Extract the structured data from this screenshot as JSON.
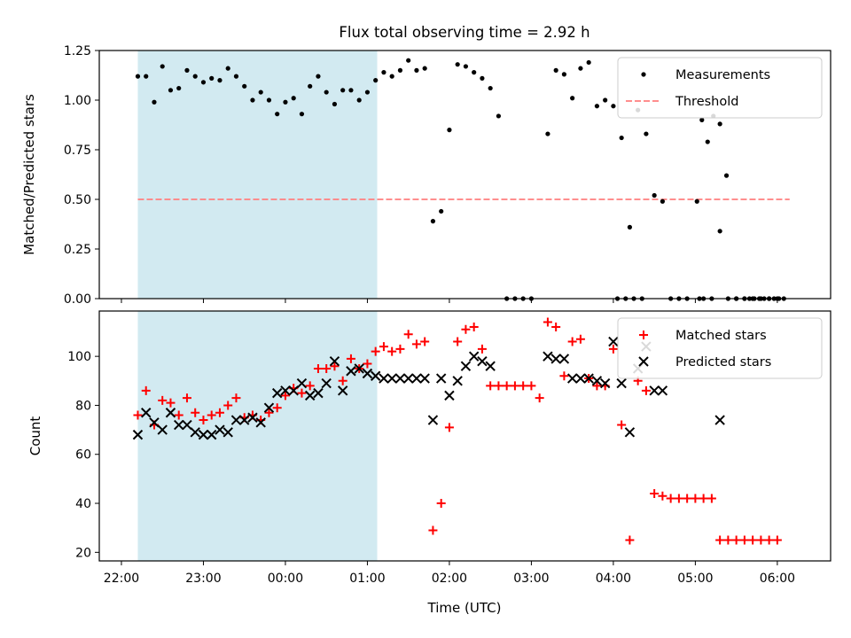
{
  "title": "Flux total observing time = 2.92 h",
  "colors": {
    "measurement": "#000000",
    "threshold": "#ff7f7f",
    "shade": "#add8e6",
    "matched": "#ff0000",
    "predicted": "#000000"
  },
  "x_axis": {
    "label": "Time (UTC)",
    "range_hours": [
      21.73,
      30.65
    ],
    "ticks": [
      {
        "h": 22,
        "label": "22:00"
      },
      {
        "h": 23,
        "label": "23:00"
      },
      {
        "h": 24,
        "label": "00:00"
      },
      {
        "h": 25,
        "label": "01:00"
      },
      {
        "h": 26,
        "label": "02:00"
      },
      {
        "h": 27,
        "label": "03:00"
      },
      {
        "h": 28,
        "label": "04:00"
      },
      {
        "h": 29,
        "label": "05:00"
      },
      {
        "h": 30,
        "label": "06:00"
      }
    ]
  },
  "shaded_span_hours": [
    22.2,
    25.12
  ],
  "chart_data": [
    {
      "type": "scatter",
      "ylabel": "Matched/Predicted stars",
      "ylim": [
        0,
        1.25
      ],
      "yticks": [
        {
          "v": 0,
          "label": "0.00"
        },
        {
          "v": 0.25,
          "label": "0.25"
        },
        {
          "v": 0.5,
          "label": "0.50"
        },
        {
          "v": 0.75,
          "label": "0.75"
        },
        {
          "v": 1.0,
          "label": "1.00"
        },
        {
          "v": 1.25,
          "label": "1.25"
        }
      ],
      "legend": [
        {
          "name": "Measurements",
          "marker": "dot"
        },
        {
          "name": "Threshold",
          "marker": "dash"
        }
      ],
      "threshold": {
        "value": 0.5,
        "x_range": [
          22.2,
          30.15
        ]
      },
      "series": [
        {
          "name": "Measurements",
          "points": [
            [
              22.2,
              1.12
            ],
            [
              22.3,
              1.12
            ],
            [
              22.4,
              0.99
            ],
            [
              22.5,
              1.17
            ],
            [
              22.6,
              1.05
            ],
            [
              22.7,
              1.06
            ],
            [
              22.8,
              1.15
            ],
            [
              22.9,
              1.12
            ],
            [
              23.0,
              1.09
            ],
            [
              23.1,
              1.11
            ],
            [
              23.2,
              1.1
            ],
            [
              23.3,
              1.16
            ],
            [
              23.4,
              1.12
            ],
            [
              23.5,
              1.07
            ],
            [
              23.6,
              1.0
            ],
            [
              23.7,
              1.04
            ],
            [
              23.8,
              1.0
            ],
            [
              23.9,
              0.93
            ],
            [
              24.0,
              0.99
            ],
            [
              24.1,
              1.01
            ],
            [
              24.2,
              0.93
            ],
            [
              24.3,
              1.07
            ],
            [
              24.4,
              1.12
            ],
            [
              24.5,
              1.04
            ],
            [
              24.6,
              0.98
            ],
            [
              24.7,
              1.05
            ],
            [
              24.8,
              1.05
            ],
            [
              24.9,
              1.0
            ],
            [
              25.0,
              1.04
            ],
            [
              25.1,
              1.1
            ],
            [
              25.2,
              1.14
            ],
            [
              25.3,
              1.12
            ],
            [
              25.4,
              1.15
            ],
            [
              25.5,
              1.2
            ],
            [
              25.6,
              1.15
            ],
            [
              25.7,
              1.16
            ],
            [
              25.8,
              0.39
            ],
            [
              25.9,
              0.44
            ],
            [
              26.0,
              0.85
            ],
            [
              26.1,
              1.18
            ],
            [
              26.2,
              1.17
            ],
            [
              26.3,
              1.14
            ],
            [
              26.4,
              1.11
            ],
            [
              26.5,
              1.06
            ],
            [
              26.6,
              0.92
            ],
            [
              26.7,
              0.0
            ],
            [
              26.8,
              0.0
            ],
            [
              26.9,
              0.0
            ],
            [
              27.0,
              0.0
            ],
            [
              27.2,
              0.83
            ],
            [
              27.3,
              1.15
            ],
            [
              27.4,
              1.13
            ],
            [
              27.5,
              1.01
            ],
            [
              27.6,
              1.16
            ],
            [
              27.7,
              1.19
            ],
            [
              27.8,
              0.97
            ],
            [
              27.9,
              1.0
            ],
            [
              28.0,
              0.97
            ],
            [
              28.1,
              0.81
            ],
            [
              28.2,
              0.36
            ],
            [
              28.3,
              0.95
            ],
            [
              28.4,
              0.83
            ],
            [
              28.5,
              0.52
            ],
            [
              28.6,
              0.49
            ],
            [
              28.7,
              0.0
            ],
            [
              28.8,
              0.0
            ],
            [
              28.9,
              0.0
            ],
            [
              29.1,
              0.0
            ],
            [
              29.2,
              0.0
            ],
            [
              29.3,
              0.34
            ],
            [
              29.4,
              0.0
            ],
            [
              29.5,
              0.0
            ],
            [
              29.6,
              0.0
            ],
            [
              29.7,
              0.0
            ],
            [
              29.8,
              0.0
            ],
            [
              29.9,
              0.0
            ],
            [
              30.0,
              0.0
            ],
            [
              29.05,
              0.0
            ],
            [
              28.05,
              0.0
            ],
            [
              28.15,
              0.0
            ],
            [
              28.25,
              0.0
            ],
            [
              28.35,
              0.0
            ],
            [
              29.02,
              0.49
            ],
            [
              29.08,
              0.9
            ],
            [
              29.15,
              0.79
            ],
            [
              29.22,
              0.92
            ],
            [
              29.3,
              0.88
            ],
            [
              29.38,
              0.62
            ],
            [
              29.5,
              0.0
            ],
            [
              29.6,
              0.0
            ],
            [
              29.66,
              0.0
            ],
            [
              29.72,
              0.0
            ],
            [
              29.78,
              0.0
            ],
            [
              29.84,
              0.0
            ],
            [
              29.9,
              0.0
            ],
            [
              29.96,
              0.0
            ],
            [
              30.02,
              0.0
            ],
            [
              30.08,
              0.0
            ]
          ]
        }
      ]
    },
    {
      "type": "scatter",
      "ylabel": "Count",
      "ylim": [
        16.5,
        118.5
      ],
      "yticks": [
        {
          "v": 20,
          "label": "20"
        },
        {
          "v": 40,
          "label": "40"
        },
        {
          "v": 60,
          "label": "60"
        },
        {
          "v": 80,
          "label": "80"
        },
        {
          "v": 100,
          "label": "100"
        }
      ],
      "legend": [
        {
          "name": "Matched stars",
          "marker": "plus"
        },
        {
          "name": "Predicted stars",
          "marker": "x"
        }
      ],
      "series": [
        {
          "name": "Matched stars",
          "points": [
            [
              22.2,
              76
            ],
            [
              22.3,
              86
            ],
            [
              22.4,
              72
            ],
            [
              22.5,
              82
            ],
            [
              22.6,
              81
            ],
            [
              22.7,
              76
            ],
            [
              22.8,
              83
            ],
            [
              22.9,
              77
            ],
            [
              23.0,
              74
            ],
            [
              23.1,
              76
            ],
            [
              23.2,
              77
            ],
            [
              23.3,
              80
            ],
            [
              23.4,
              83
            ],
            [
              23.5,
              75
            ],
            [
              23.6,
              76
            ],
            [
              23.7,
              74
            ],
            [
              23.8,
              77
            ],
            [
              23.9,
              79
            ],
            [
              24.0,
              84
            ],
            [
              24.1,
              87
            ],
            [
              24.2,
              85
            ],
            [
              24.3,
              88
            ],
            [
              24.4,
              95
            ],
            [
              24.5,
              95
            ],
            [
              24.6,
              96
            ],
            [
              24.7,
              90
            ],
            [
              24.8,
              99
            ],
            [
              24.9,
              95
            ],
            [
              25.0,
              97
            ],
            [
              25.1,
              102
            ],
            [
              25.2,
              104
            ],
            [
              25.3,
              102
            ],
            [
              25.4,
              103
            ],
            [
              25.5,
              109
            ],
            [
              25.6,
              105
            ],
            [
              25.7,
              106
            ],
            [
              25.8,
              29
            ],
            [
              25.9,
              40
            ],
            [
              26.0,
              71
            ],
            [
              26.1,
              106
            ],
            [
              26.2,
              111
            ],
            [
              26.3,
              112
            ],
            [
              26.4,
              103
            ],
            [
              26.5,
              88
            ],
            [
              26.6,
              88
            ],
            [
              26.7,
              88
            ],
            [
              26.8,
              88
            ],
            [
              26.9,
              88
            ],
            [
              27.0,
              88
            ],
            [
              27.1,
              83
            ],
            [
              27.2,
              114
            ],
            [
              27.3,
              112
            ],
            [
              27.4,
              92
            ],
            [
              27.5,
              106
            ],
            [
              27.6,
              107
            ],
            [
              27.7,
              91
            ],
            [
              27.8,
              88
            ],
            [
              27.9,
              88
            ],
            [
              28.0,
              103
            ],
            [
              28.1,
              72
            ],
            [
              28.2,
              25
            ],
            [
              28.3,
              90
            ],
            [
              28.4,
              86
            ],
            [
              28.5,
              44
            ],
            [
              28.6,
              43
            ],
            [
              28.7,
              42
            ],
            [
              28.8,
              42
            ],
            [
              28.9,
              42
            ],
            [
              29.0,
              42
            ],
            [
              29.1,
              42
            ],
            [
              29.2,
              42
            ],
            [
              29.3,
              25
            ],
            [
              29.4,
              25
            ],
            [
              29.5,
              25
            ],
            [
              29.6,
              25
            ],
            [
              29.7,
              25
            ],
            [
              29.8,
              25
            ],
            [
              29.9,
              25
            ],
            [
              30.0,
              25
            ]
          ]
        },
        {
          "name": "Predicted stars",
          "points": [
            [
              22.2,
              68
            ],
            [
              22.3,
              77
            ],
            [
              22.4,
              73
            ],
            [
              22.5,
              70
            ],
            [
              22.6,
              77
            ],
            [
              22.7,
              72
            ],
            [
              22.8,
              72
            ],
            [
              22.9,
              69
            ],
            [
              23.0,
              68
            ],
            [
              23.1,
              68
            ],
            [
              23.2,
              70
            ],
            [
              23.3,
              69
            ],
            [
              23.4,
              74
            ],
            [
              23.5,
              74
            ],
            [
              23.6,
              75
            ],
            [
              23.7,
              73
            ],
            [
              23.8,
              79
            ],
            [
              23.9,
              85
            ],
            [
              24.0,
              86
            ],
            [
              24.1,
              86
            ],
            [
              24.2,
              89
            ],
            [
              24.3,
              84
            ],
            [
              24.4,
              85
            ],
            [
              24.5,
              89
            ],
            [
              24.6,
              98
            ],
            [
              24.7,
              86
            ],
            [
              24.8,
              94
            ],
            [
              24.9,
              95
            ],
            [
              25.0,
              93
            ],
            [
              25.1,
              92
            ],
            [
              25.2,
              91
            ],
            [
              25.3,
              91
            ],
            [
              25.4,
              91
            ],
            [
              25.5,
              91
            ],
            [
              25.6,
              91
            ],
            [
              25.7,
              91
            ],
            [
              25.8,
              74
            ],
            [
              25.9,
              91
            ],
            [
              26.0,
              84
            ],
            [
              26.1,
              90
            ],
            [
              26.2,
              96
            ],
            [
              26.3,
              100
            ],
            [
              26.4,
              98
            ],
            [
              26.5,
              96
            ],
            [
              27.2,
              100
            ],
            [
              27.3,
              99
            ],
            [
              27.4,
              99
            ],
            [
              27.5,
              91
            ],
            [
              27.6,
              91
            ],
            [
              27.7,
              91
            ],
            [
              27.8,
              90
            ],
            [
              27.9,
              89
            ],
            [
              28.0,
              106
            ],
            [
              28.1,
              89
            ],
            [
              28.2,
              69
            ],
            [
              28.3,
              95
            ],
            [
              28.4,
              104
            ],
            [
              28.5,
              86
            ],
            [
              28.6,
              86
            ],
            [
              29.3,
              74
            ]
          ]
        }
      ]
    }
  ]
}
